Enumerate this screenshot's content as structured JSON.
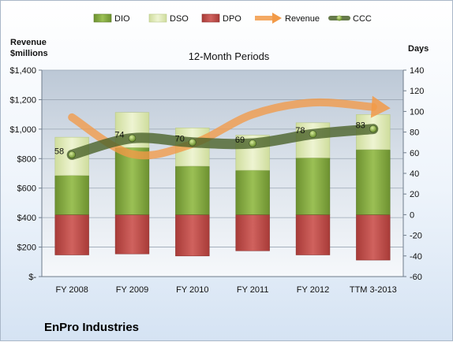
{
  "chart_data": {
    "type": "bar",
    "title": "12-Month Periods",
    "company": "EnPro Industries",
    "left_axis_label": [
      "Revenue",
      "$millions"
    ],
    "right_axis_label": "Days",
    "categories": [
      "FY 2008",
      "FY 2009",
      "FY 2010",
      "FY 2011",
      "FY 2012",
      "TTM 3-2013"
    ],
    "left_axis": {
      "min": 0,
      "max": 1400,
      "step": 200,
      "ticks": [
        "$-",
        "$200",
        "$400",
        "$600",
        "$800",
        "$1,000",
        "$1,200",
        "$1,400"
      ]
    },
    "right_axis": {
      "min": -60,
      "max": 140,
      "step": 20,
      "ticks": [
        "-60",
        "-40",
        "-20",
        "0",
        "20",
        "40",
        "60",
        "80",
        "100",
        "120",
        "140"
      ]
    },
    "legend": [
      {
        "name": "DIO",
        "color": "#7fa53c",
        "kind": "box"
      },
      {
        "name": "DSO",
        "color": "#dfeab8",
        "kind": "box"
      },
      {
        "name": "DPO",
        "color": "#c0504d",
        "kind": "box"
      },
      {
        "name": "Revenue",
        "color": "#f29a48",
        "kind": "arrow"
      },
      {
        "name": "CCC",
        "color": "#5a7a37",
        "kind": "line"
      }
    ],
    "series": [
      {
        "name": "DIO",
        "axis": "right",
        "values": [
          38,
          65,
          47,
          43,
          55,
          63
        ],
        "color": "#7fa53c"
      },
      {
        "name": "DSO",
        "axis": "right",
        "values": [
          37,
          34,
          37,
          34,
          34,
          34
        ],
        "color": "#dfeab8"
      },
      {
        "name": "DPO",
        "axis": "right",
        "values": [
          -39,
          -38,
          -40,
          -35,
          -39,
          -44
        ],
        "color": "#c0504d"
      },
      {
        "name": "CCC",
        "axis": "right",
        "values": [
          58,
          74,
          70,
          69,
          78,
          83
        ],
        "data_labels": [
          "58",
          "74",
          "70",
          "69",
          "78",
          "83"
        ],
        "color": "#5a7a37"
      },
      {
        "name": "Revenue",
        "axis": "left",
        "values": [
          1080,
          830,
          900,
          1100,
          1180,
          1150
        ],
        "color": "#f29a48"
      }
    ],
    "grid": true,
    "legend_position": "top"
  }
}
